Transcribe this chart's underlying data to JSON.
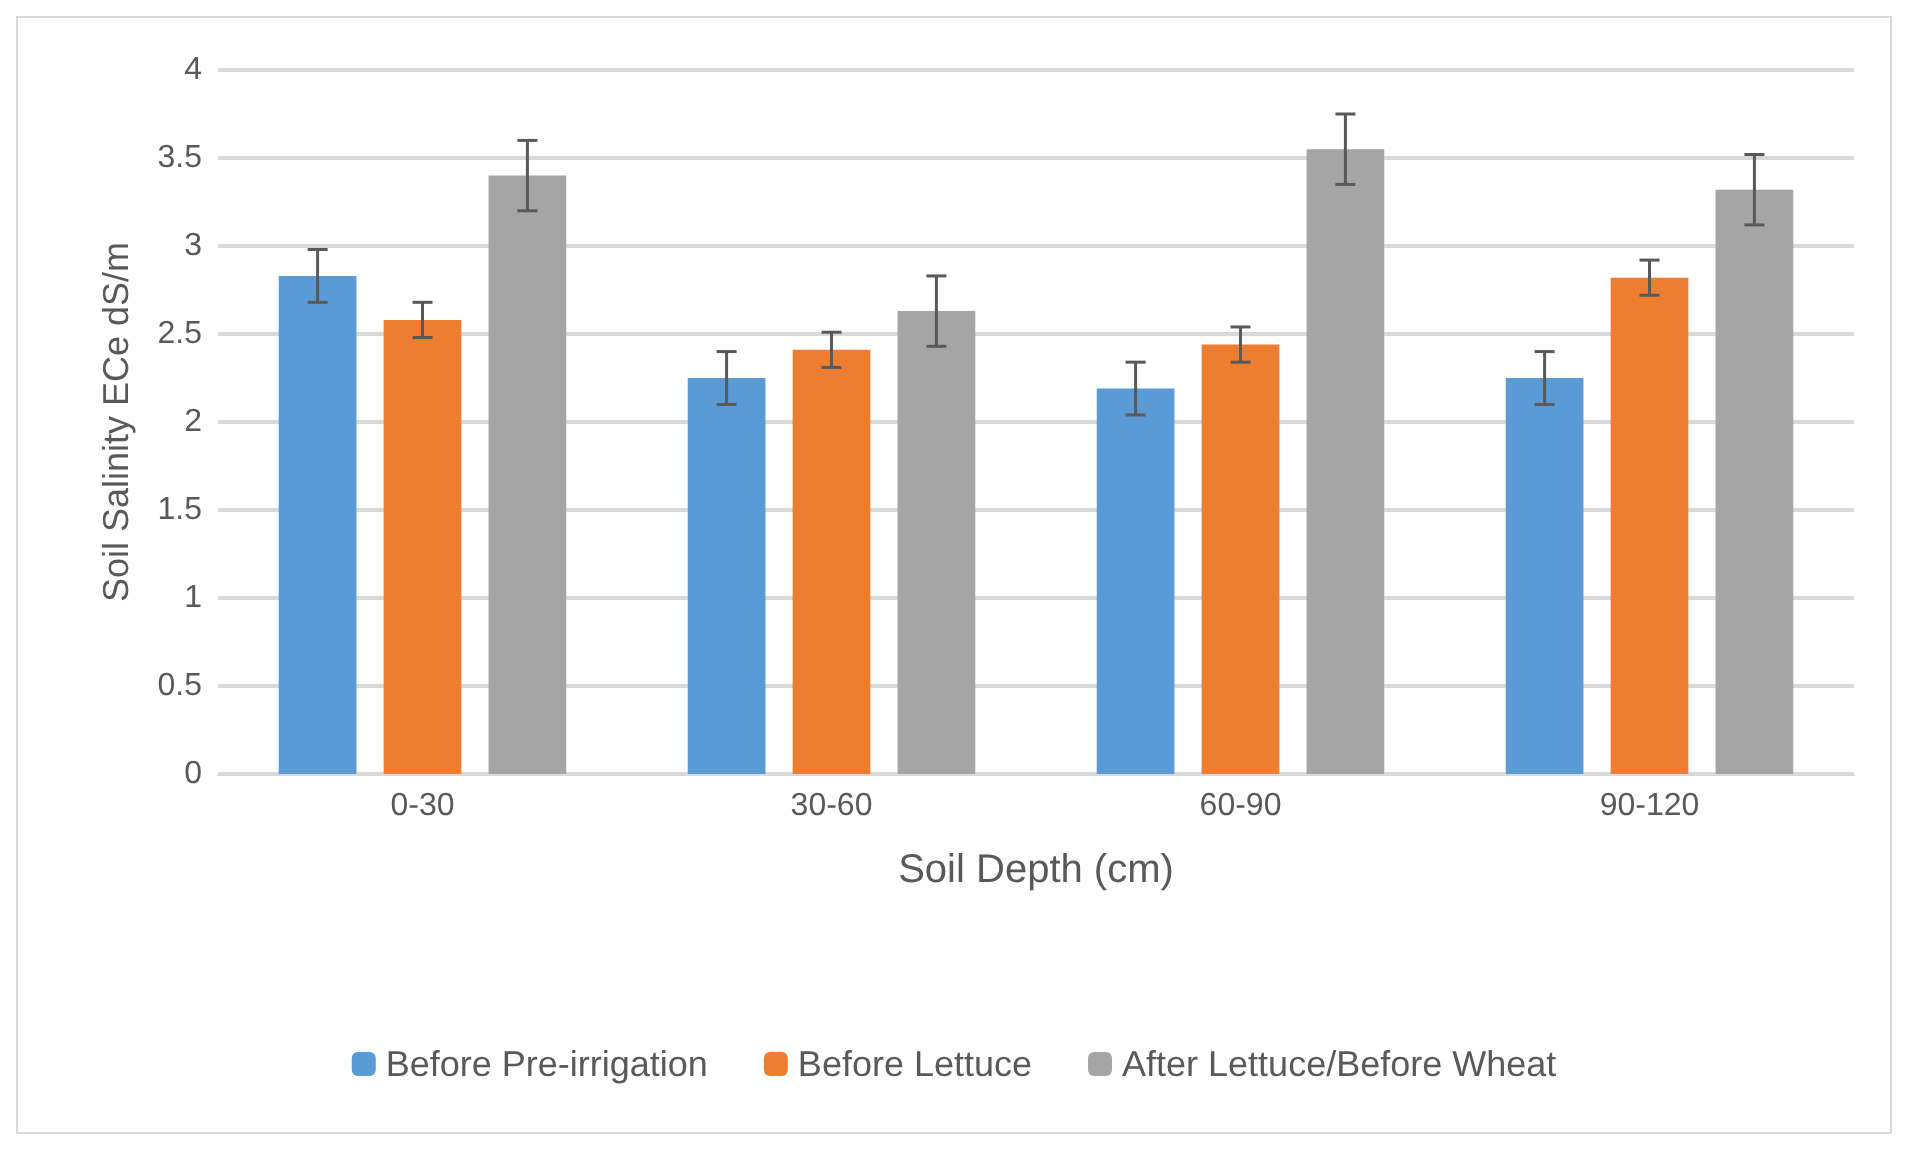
{
  "chart_data": {
    "type": "bar",
    "xlabel": "Soil Depth (cm)",
    "ylabel": "Soil Salinity ECe dS/m",
    "categories": [
      "0-30",
      "30-60",
      "60-90",
      "90-120"
    ],
    "series": [
      {
        "name": "Before Pre-irrigation",
        "color": "#5b9bd5",
        "values": [
          2.83,
          2.25,
          2.19,
          2.25
        ],
        "errors": [
          0.15,
          0.15,
          0.15,
          0.15
        ]
      },
      {
        "name": "Before Lettuce",
        "color": "#ed7d31",
        "values": [
          2.58,
          2.41,
          2.44,
          2.82
        ],
        "errors": [
          0.1,
          0.1,
          0.1,
          0.1
        ]
      },
      {
        "name": "After Lettuce/Before Wheat",
        "color": "#a5a5a5",
        "values": [
          3.4,
          2.63,
          3.55,
          3.32
        ],
        "errors": [
          0.2,
          0.2,
          0.2,
          0.2
        ]
      }
    ],
    "ylim": [
      0,
      4
    ],
    "yticks": [
      0,
      0.5,
      1,
      1.5,
      2,
      2.5,
      3,
      3.5,
      4
    ],
    "grid": "y",
    "legend": "bottom"
  }
}
